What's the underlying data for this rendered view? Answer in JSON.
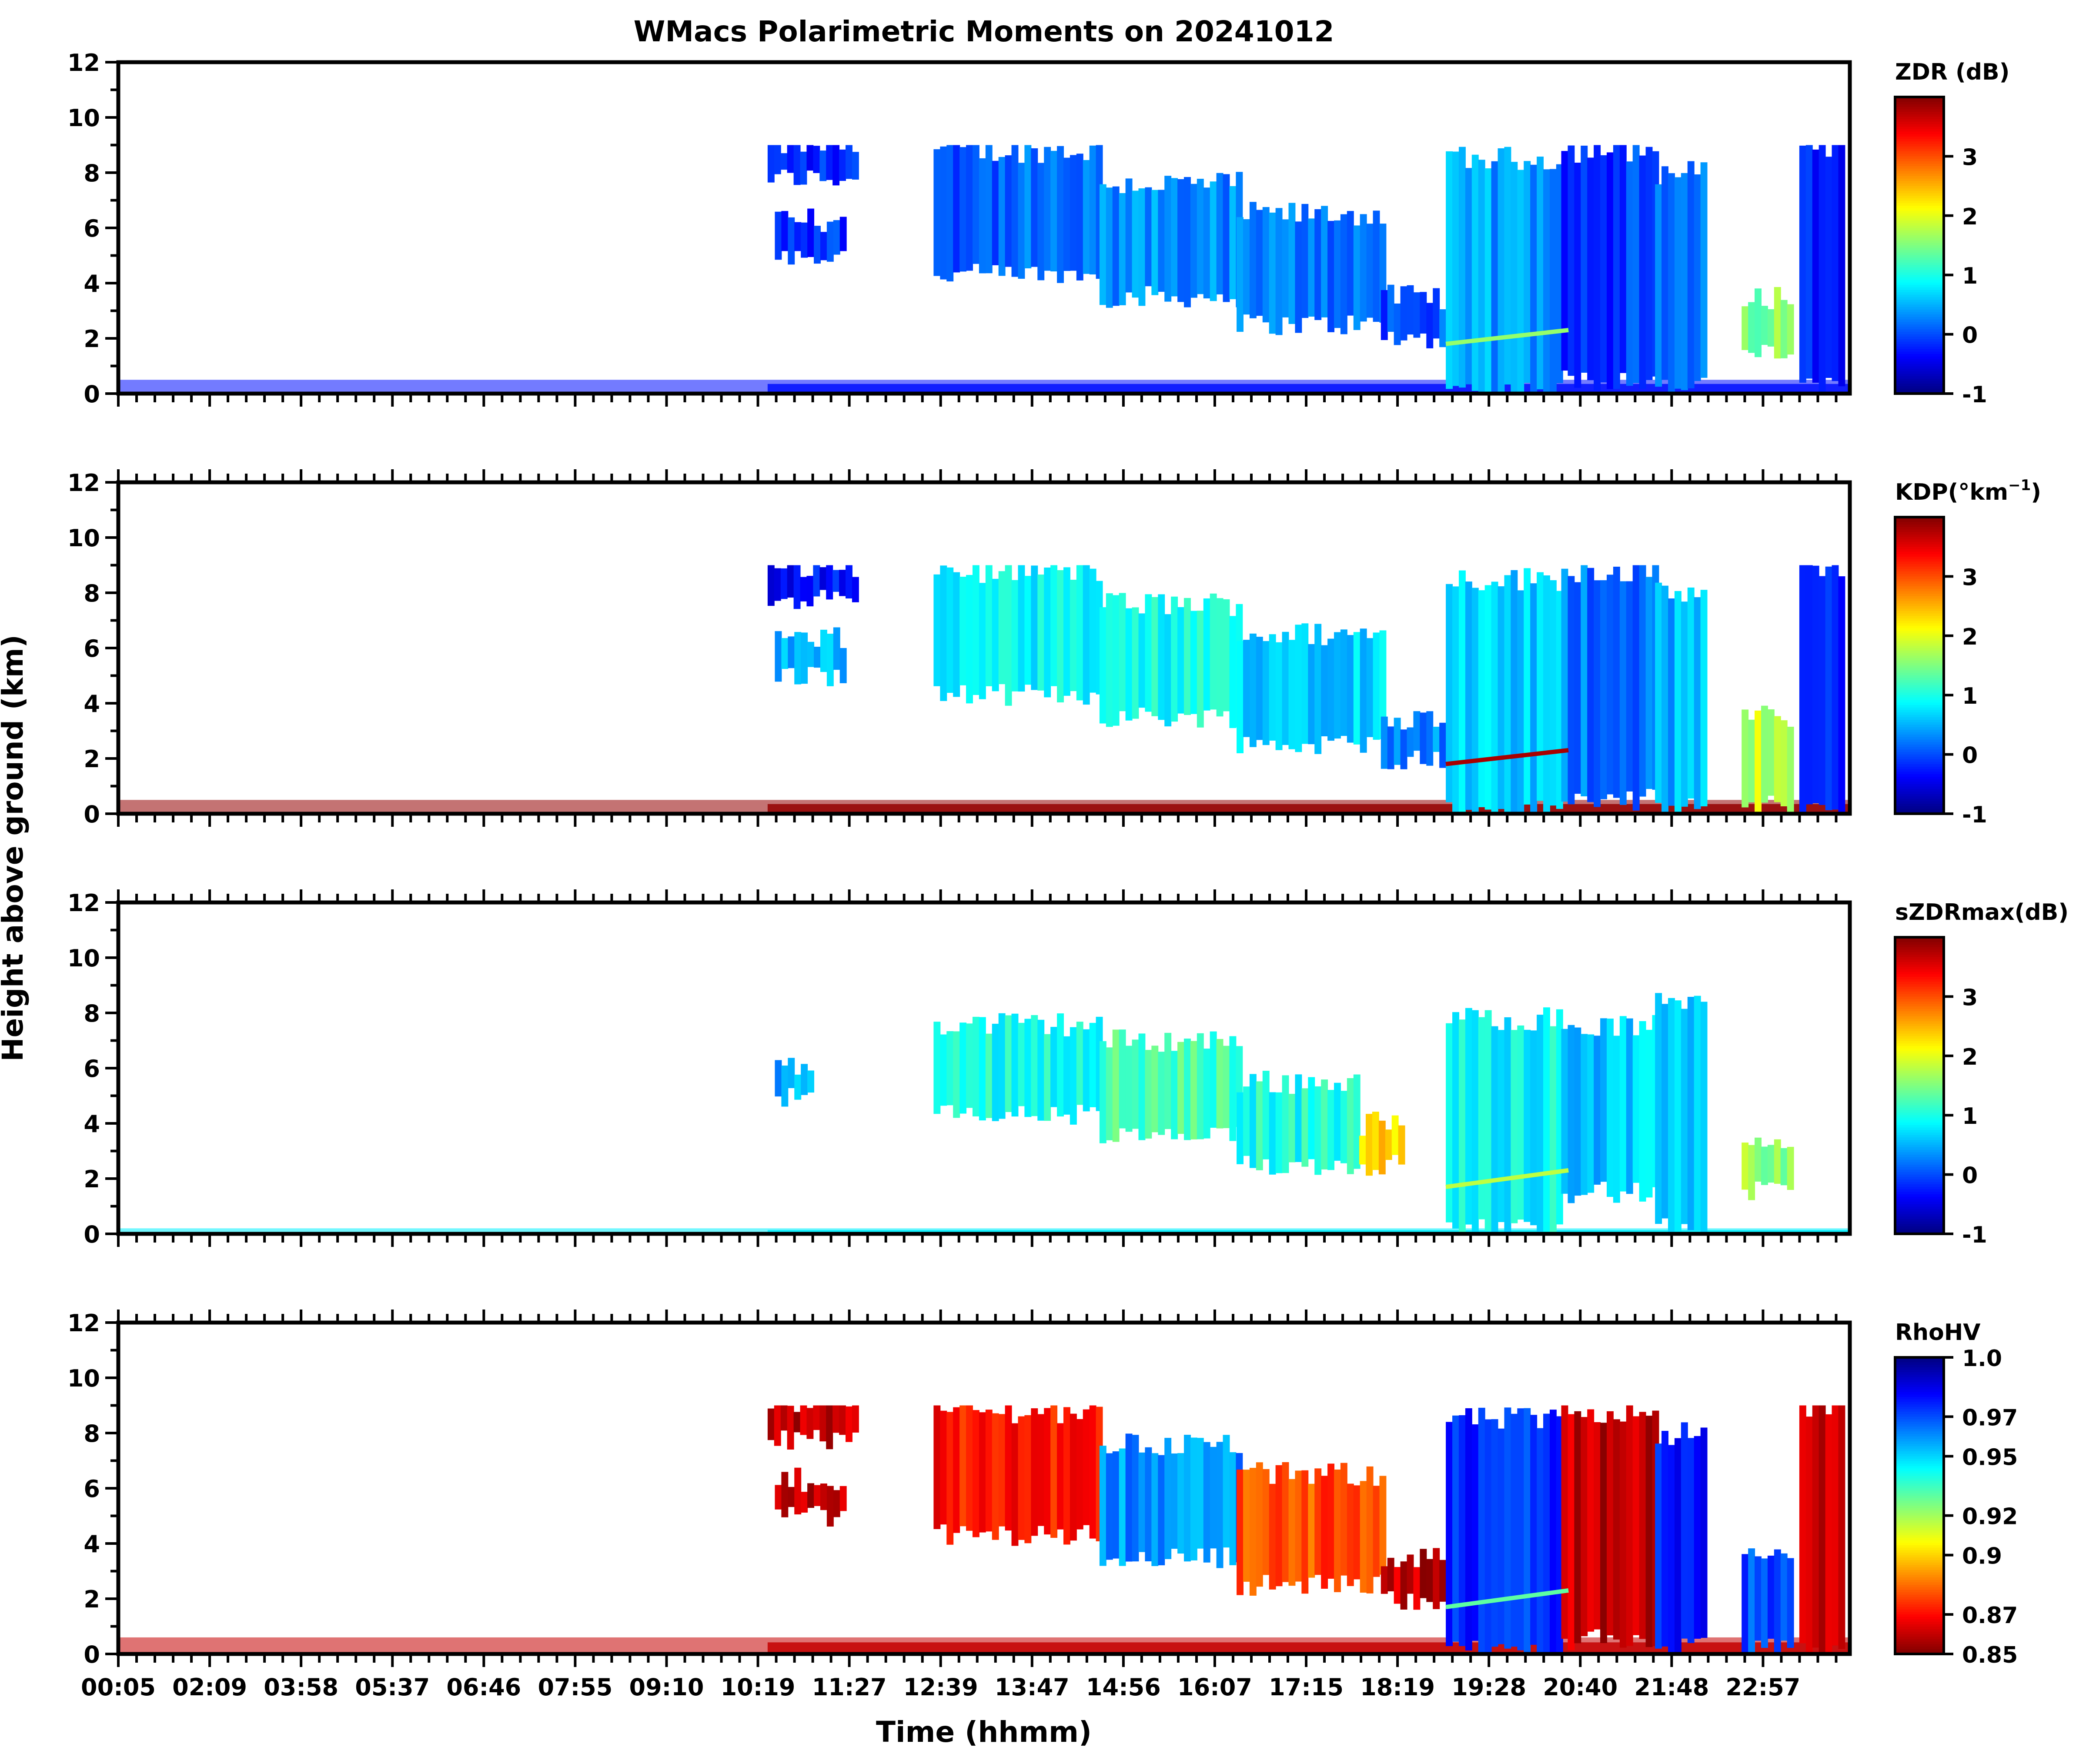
{
  "figure": {
    "title": "WMacs Polarimetric Moments on 20241012",
    "ylabel": "Height above ground (km)",
    "xlabel": "Time (hhmm)",
    "xtick_labels": [
      "00:05",
      "02:09",
      "03:58",
      "05:37",
      "06:46",
      "07:55",
      "09:10",
      "10:19",
      "11:27",
      "12:39",
      "13:47",
      "14:56",
      "16:07",
      "17:15",
      "18:19",
      "19:28",
      "20:40",
      "21:48",
      "22:57"
    ],
    "ytick_labels": [
      "0",
      "2",
      "4",
      "6",
      "8",
      "10",
      "12"
    ]
  },
  "chart_data": [
    {
      "type": "heatmap",
      "id": "zdr",
      "colorbar_label": "ZDR (dB)",
      "colormap": "jet",
      "vmin": -1,
      "vmax": 4,
      "colorbar_ticks": [
        3,
        2,
        1,
        0,
        -1
      ],
      "colorbar_tick_labels": [
        "3",
        "2",
        "1",
        "0",
        "-1"
      ],
      "xlabel": "Time (hhmm)",
      "ylabel": "Height above ground (km)",
      "ylim": [
        0,
        12
      ],
      "cloud_top_km": 9,
      "regions": [
        {
          "t0": 9.0,
          "t1": 10.2,
          "z0": 7.8,
          "z1": 9.0,
          "value": -0.2
        },
        {
          "t0": 9.1,
          "t1": 10.0,
          "z0": 5.0,
          "z1": 6.3,
          "value": -0.1
        },
        {
          "t0": 11.3,
          "t1": 13.6,
          "z0": 4.3,
          "z1": 8.8,
          "value": 0.1
        },
        {
          "t0": 13.6,
          "t1": 15.5,
          "z0": 3.5,
          "z1": 7.6,
          "value": 0.3
        },
        {
          "t0": 15.5,
          "t1": 17.5,
          "z0": 2.5,
          "z1": 6.5,
          "value": 0.2
        },
        {
          "t0": 17.5,
          "t1": 18.4,
          "z0": 2.0,
          "z1": 3.5,
          "value": 0.0
        },
        {
          "t0": 18.4,
          "t1": 20.0,
          "z0": 0.1,
          "z1": 8.5,
          "value": 0.4
        },
        {
          "t0": 20.0,
          "t1": 21.3,
          "z0": 0.5,
          "z1": 8.8,
          "value": -0.1
        },
        {
          "t0": 21.3,
          "t1": 22.0,
          "z0": 0.2,
          "z1": 8.0,
          "value": 0.1
        },
        {
          "t0": 22.5,
          "t1": 23.2,
          "z0": 1.5,
          "z1": 3.5,
          "value": 1.5
        },
        {
          "t0": 23.3,
          "t1": 23.9,
          "z0": 0.2,
          "z1": 9.0,
          "value": -0.2
        }
      ],
      "melting_layer": {
        "t0": 18.4,
        "t1": 20.1,
        "z_start": 1.8,
        "z_end": 2.3,
        "value": 1.6
      },
      "noise_layer": {
        "t0": 0.0,
        "t1": 24.0,
        "z0": 0.0,
        "z1": 0.5,
        "value": -0.3
      }
    },
    {
      "type": "heatmap",
      "id": "kdp",
      "colorbar_label": "KDP(°km",
      "colorbar_label_sup": "−1",
      "colorbar_label_end": ")",
      "colormap": "jet",
      "vmin": -1,
      "vmax": 4,
      "colorbar_ticks": [
        3,
        2,
        1,
        0,
        -1
      ],
      "colorbar_tick_labels": [
        "3",
        "2",
        "1",
        "0",
        "-1"
      ],
      "xlabel": "Time (hhmm)",
      "ylabel": "Height above ground (km)",
      "ylim": [
        0,
        12
      ],
      "cloud_top_km": 9,
      "regions": [
        {
          "t0": 9.0,
          "t1": 10.2,
          "z0": 7.8,
          "z1": 9.0,
          "value": -0.3
        },
        {
          "t0": 9.1,
          "t1": 10.0,
          "z0": 5.0,
          "z1": 6.3,
          "value": 0.5
        },
        {
          "t0": 11.3,
          "t1": 13.6,
          "z0": 4.3,
          "z1": 8.8,
          "value": 0.8
        },
        {
          "t0": 13.6,
          "t1": 15.5,
          "z0": 3.5,
          "z1": 7.6,
          "value": 0.9
        },
        {
          "t0": 15.5,
          "t1": 17.5,
          "z0": 2.5,
          "z1": 6.5,
          "value": 0.7
        },
        {
          "t0": 17.5,
          "t1": 18.4,
          "z0": 2.0,
          "z1": 3.5,
          "value": 0.3
        },
        {
          "t0": 18.4,
          "t1": 20.0,
          "z0": 0.1,
          "z1": 8.5,
          "value": 0.6
        },
        {
          "t0": 20.0,
          "t1": 21.3,
          "z0": 0.5,
          "z1": 8.8,
          "value": 0.2
        },
        {
          "t0": 21.3,
          "t1": 22.0,
          "z0": 0.2,
          "z1": 8.0,
          "value": 0.5
        },
        {
          "t0": 22.5,
          "t1": 23.2,
          "z0": 0.3,
          "z1": 3.5,
          "value": 1.8
        },
        {
          "t0": 23.3,
          "t1": 23.9,
          "z0": 0.2,
          "z1": 9.0,
          "value": -0.3
        }
      ],
      "melting_layer": {
        "t0": 18.4,
        "t1": 20.1,
        "z_start": 1.8,
        "z_end": 2.3,
        "value": 3.8
      },
      "noise_layer": {
        "t0": 0.0,
        "t1": 24.0,
        "z0": 0.0,
        "z1": 0.5,
        "value": 3.9
      }
    },
    {
      "type": "heatmap",
      "id": "szdrmax",
      "colorbar_label": "sZDRmax(dB)",
      "colormap": "jet",
      "vmin": -1,
      "vmax": 4,
      "colorbar_ticks": [
        3,
        2,
        1,
        0,
        -1
      ],
      "colorbar_tick_labels": [
        "3",
        "2",
        "1",
        "0",
        "-1"
      ],
      "xlabel": "Time (hhmm)",
      "ylabel": "Height above ground (km)",
      "ylim": [
        0,
        12
      ],
      "cloud_top_km": 8.8,
      "regions": [
        {
          "t0": 9.1,
          "t1": 9.6,
          "z0": 5.0,
          "z1": 6.0,
          "value": 0.5
        },
        {
          "t0": 11.3,
          "t1": 13.6,
          "z0": 4.3,
          "z1": 7.6,
          "value": 1.0
        },
        {
          "t0": 13.6,
          "t1": 15.5,
          "z0": 3.5,
          "z1": 7.0,
          "value": 1.2
        },
        {
          "t0": 15.5,
          "t1": 17.2,
          "z0": 2.5,
          "z1": 5.5,
          "value": 1.0
        },
        {
          "t0": 17.2,
          "t1": 17.8,
          "z0": 2.5,
          "z1": 4.0,
          "value": 2.3
        },
        {
          "t0": 18.4,
          "t1": 20.0,
          "z0": 0.2,
          "z1": 7.8,
          "value": 0.9
        },
        {
          "t0": 20.0,
          "t1": 21.3,
          "z0": 1.5,
          "z1": 7.5,
          "value": 0.6
        },
        {
          "t0": 21.3,
          "t1": 22.0,
          "z0": 0.2,
          "z1": 8.5,
          "value": 0.7
        },
        {
          "t0": 22.5,
          "t1": 23.2,
          "z0": 1.5,
          "z1": 3.5,
          "value": 1.6
        }
      ],
      "melting_layer": {
        "t0": 18.4,
        "t1": 20.1,
        "z_start": 1.7,
        "z_end": 2.3,
        "value": 1.8
      },
      "noise_layer": {
        "t0": 0.0,
        "t1": 24.0,
        "z0": 0.0,
        "z1": 0.2,
        "value": 0.8
      }
    },
    {
      "type": "heatmap",
      "id": "rhohv",
      "colorbar_label": "RhoHV",
      "colormap": "jet_r",
      "vmin": 0.85,
      "vmax": 1.0,
      "colorbar_ticks": [
        1.0,
        0.97,
        0.95,
        0.92,
        0.9,
        0.87,
        0.85
      ],
      "colorbar_tick_labels": [
        "1.0",
        "0.97",
        "0.95",
        "0.92",
        "0.9",
        "0.87",
        "0.85"
      ],
      "xlabel": "Time (hhmm)",
      "ylabel": "Height above ground (km)",
      "ylim": [
        0,
        12
      ],
      "cloud_top_km": 9,
      "regions": [
        {
          "t0": 9.0,
          "t1": 10.2,
          "z0": 7.8,
          "z1": 9.0,
          "value": 0.86
        },
        {
          "t0": 9.1,
          "t1": 10.0,
          "z0": 5.0,
          "z1": 6.3,
          "value": 0.86
        },
        {
          "t0": 11.3,
          "t1": 13.6,
          "z0": 4.3,
          "z1": 8.8,
          "value": 0.87
        },
        {
          "t0": 13.6,
          "t1": 15.5,
          "z0": 3.5,
          "z1": 7.6,
          "value": 0.96
        },
        {
          "t0": 15.5,
          "t1": 17.5,
          "z0": 2.5,
          "z1": 6.5,
          "value": 0.88
        },
        {
          "t0": 17.5,
          "t1": 18.4,
          "z0": 2.0,
          "z1": 3.5,
          "value": 0.86
        },
        {
          "t0": 18.4,
          "t1": 20.0,
          "z0": 0.1,
          "z1": 8.5,
          "value": 0.975
        },
        {
          "t0": 20.0,
          "t1": 21.3,
          "z0": 0.5,
          "z1": 8.8,
          "value": 0.86
        },
        {
          "t0": 21.3,
          "t1": 22.0,
          "z0": 0.2,
          "z1": 8.0,
          "value": 0.98
        },
        {
          "t0": 22.5,
          "t1": 23.2,
          "z0": 0.2,
          "z1": 3.5,
          "value": 0.97
        },
        {
          "t0": 23.3,
          "t1": 23.9,
          "z0": 0.2,
          "z1": 9.0,
          "value": 0.86
        }
      ],
      "melting_layer": {
        "t0": 18.4,
        "t1": 20.1,
        "z_start": 1.7,
        "z_end": 2.3,
        "value": 0.93
      },
      "noise_layer": {
        "t0": 0.0,
        "t1": 24.0,
        "z0": 0.0,
        "z1": 0.6,
        "value": 0.86
      }
    }
  ]
}
